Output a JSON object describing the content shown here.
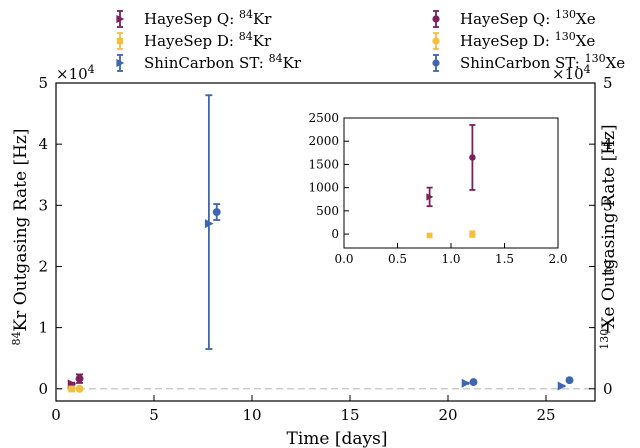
{
  "chart_data": {
    "type": "scatter",
    "xlabel": "Time [days]",
    "ylabel_left_prefix": "84",
    "ylabel_left": "Kr Outgasing Rate [Hz]",
    "ylabel_right_prefix": "130",
    "ylabel_right": "Xe Outgasing Rate [Hz]",
    "exponent_label": "×10",
    "exponent_power": "4",
    "xlim": [
      0,
      27.5
    ],
    "ylim": [
      -2000,
      50000
    ],
    "x_ticks": [
      0,
      5,
      10,
      15,
      20,
      25
    ],
    "y_ticks": [
      0,
      10000,
      20000,
      30000,
      40000,
      50000
    ],
    "y_tick_labels": [
      "0",
      "1",
      "2",
      "3",
      "4",
      "5"
    ],
    "zero_line": {
      "style": "dashed",
      "color": "#cccccc"
    },
    "series": [
      {
        "name_prefix": "HayeSep Q: ",
        "isotope_mass": "84",
        "isotope": "Kr",
        "color": "#7b1f5e",
        "marker": "triangle-right",
        "points": [
          {
            "x": 0.8,
            "y": 800,
            "err": 200
          }
        ]
      },
      {
        "name_prefix": "HayeSep Q: ",
        "isotope_mass": "130",
        "isotope": "Xe",
        "color": "#7b1f5e",
        "marker": "circle",
        "points": [
          {
            "x": 1.2,
            "y": 1650,
            "err": 700
          }
        ]
      },
      {
        "name_prefix": "HayeSep D: ",
        "isotope_mass": "84",
        "isotope": "Kr",
        "color": "#f5be3c",
        "marker": "square",
        "points": [
          {
            "x": 0.8,
            "y": -30,
            "err": 30
          }
        ]
      },
      {
        "name_prefix": "HayeSep D: ",
        "isotope_mass": "130",
        "isotope": "Xe",
        "color": "#f5be3c",
        "marker": "circle",
        "points": [
          {
            "x": 1.2,
            "y": 0,
            "err": 60
          }
        ]
      },
      {
        "name_prefix": "ShinCarbon ST: ",
        "isotope_mass": "84",
        "isotope": "Kr",
        "color": "#3d65b0",
        "marker": "triangle-right",
        "points": [
          {
            "x": 7.8,
            "y": 27000,
            "err_low": 20500,
            "err_high": 21000
          },
          {
            "x": 20.9,
            "y": 900,
            "err": 100
          },
          {
            "x": 25.8,
            "y": 450,
            "err": 50
          }
        ]
      },
      {
        "name_prefix": "ShinCarbon ST: ",
        "isotope_mass": "130",
        "isotope": "Xe",
        "color": "#3d65b0",
        "marker": "circle",
        "points": [
          {
            "x": 8.2,
            "y": 28900,
            "err": 1300
          },
          {
            "x": 21.3,
            "y": 1100,
            "err": 100
          },
          {
            "x": 26.2,
            "y": 1400,
            "err": 100
          }
        ]
      }
    ],
    "inset": {
      "xlim": [
        0,
        2.0
      ],
      "ylim": [
        -300,
        2500
      ],
      "x_ticks": [
        "0.0",
        "0.5",
        "1.0",
        "1.5",
        "2.0"
      ],
      "y_ticks": [
        "0",
        "500",
        "1000",
        "1500",
        "2000",
        "2500"
      ]
    }
  }
}
